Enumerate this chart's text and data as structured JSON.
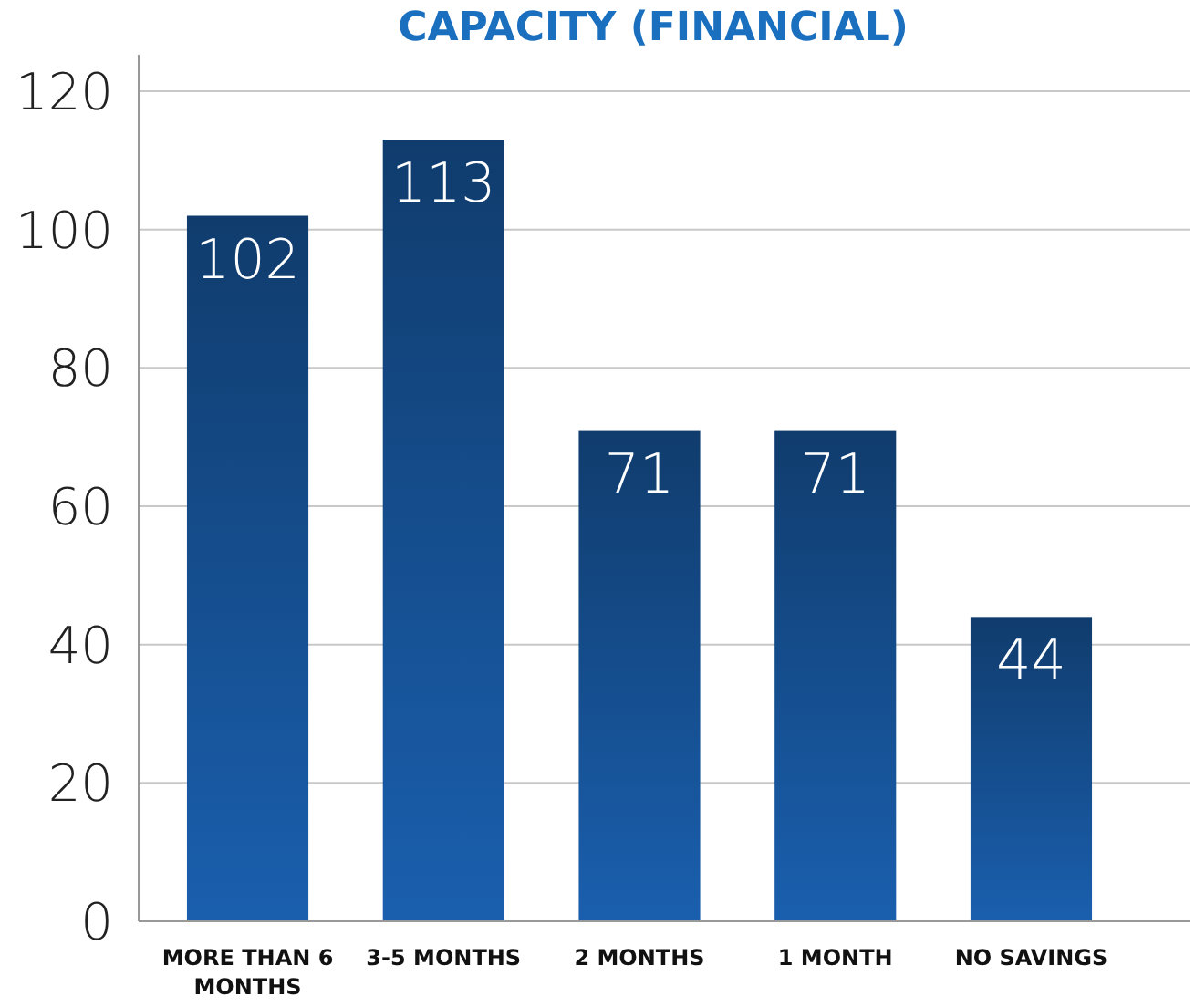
{
  "chart_data": {
    "type": "bar",
    "title": "CAPACITY (FINANCIAL)",
    "categories": [
      "MORE THAN 6 MONTHS",
      "3-5 MONTHS",
      "2 MONTHS",
      "1 MONTH",
      "NO SAVINGS"
    ],
    "values": [
      102,
      113,
      71,
      71,
      44
    ],
    "color": "#1a5fae",
    "ylim": [
      0,
      120
    ],
    "yticks": [
      0,
      20,
      40,
      60,
      80,
      100,
      120
    ],
    "grid": "y",
    "data_labels": true
  }
}
